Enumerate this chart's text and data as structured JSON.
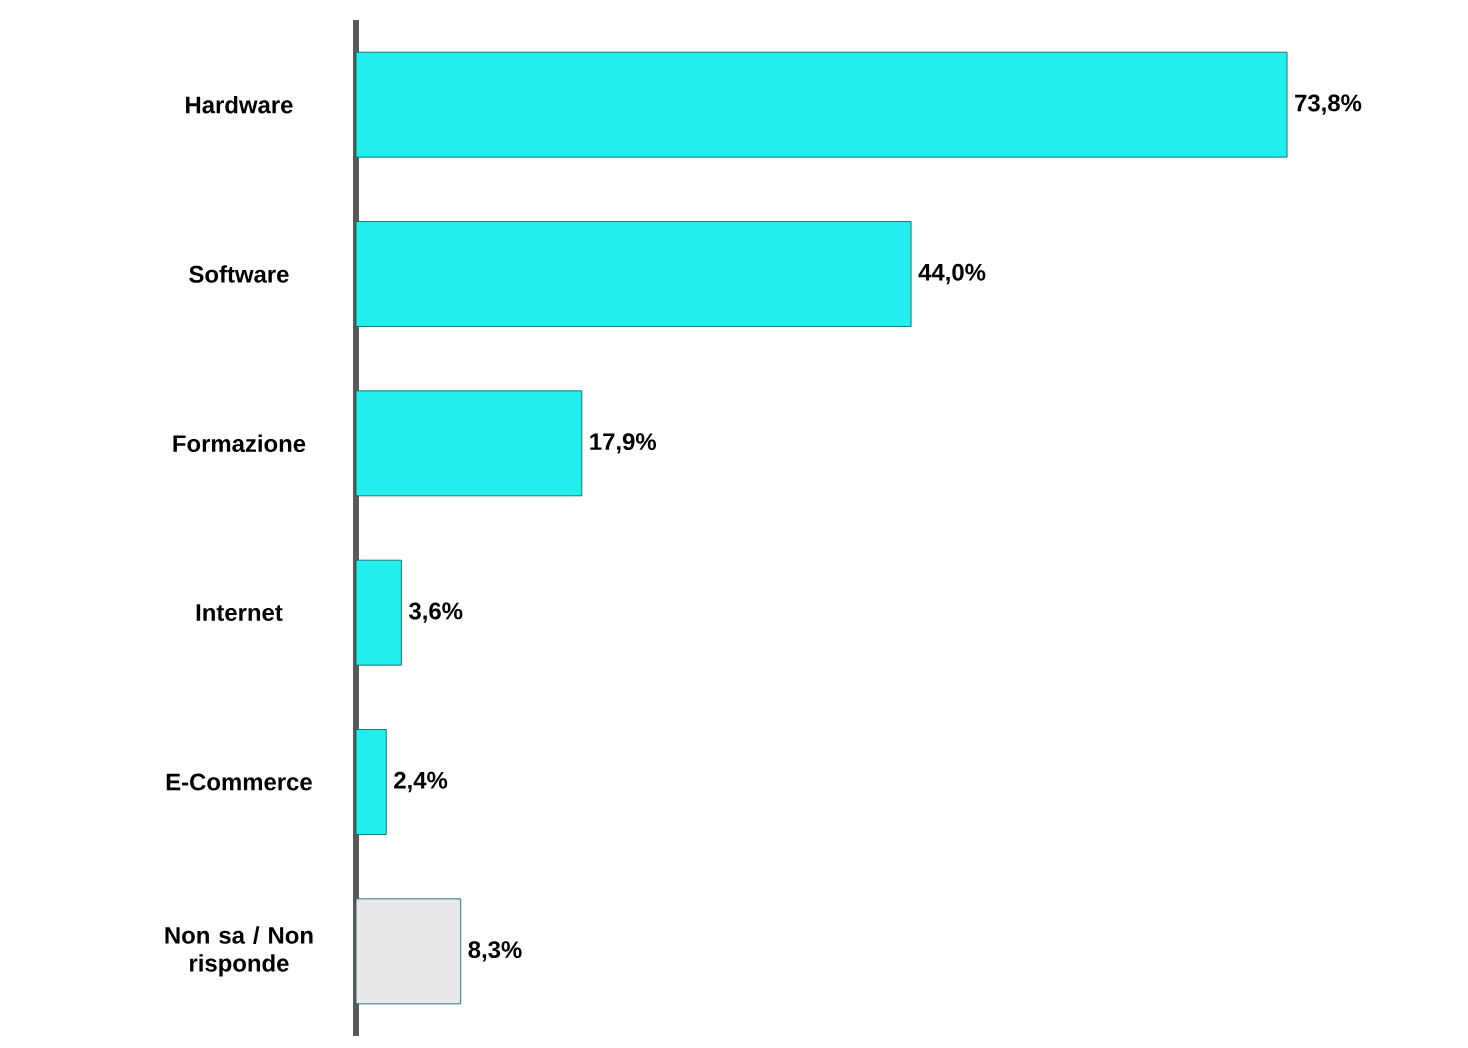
{
  "chart_data": {
    "type": "bar",
    "orientation": "horizontal",
    "categories": [
      "Hardware",
      "Software",
      "Formazione",
      "Internet",
      "E-Commerce",
      "Non sa / Non risponde"
    ],
    "values": [
      73.8,
      44.0,
      17.9,
      3.6,
      2.4,
      8.3
    ],
    "colors": [
      "#22eeee",
      "#22eeee",
      "#22eeee",
      "#22eeee",
      "#22eeee",
      "#e8e8e8"
    ],
    "value_labels": [
      "73,8%",
      "44,0%",
      "17,9%",
      "3,6%",
      "2,4%",
      "8,3%"
    ]
  }
}
